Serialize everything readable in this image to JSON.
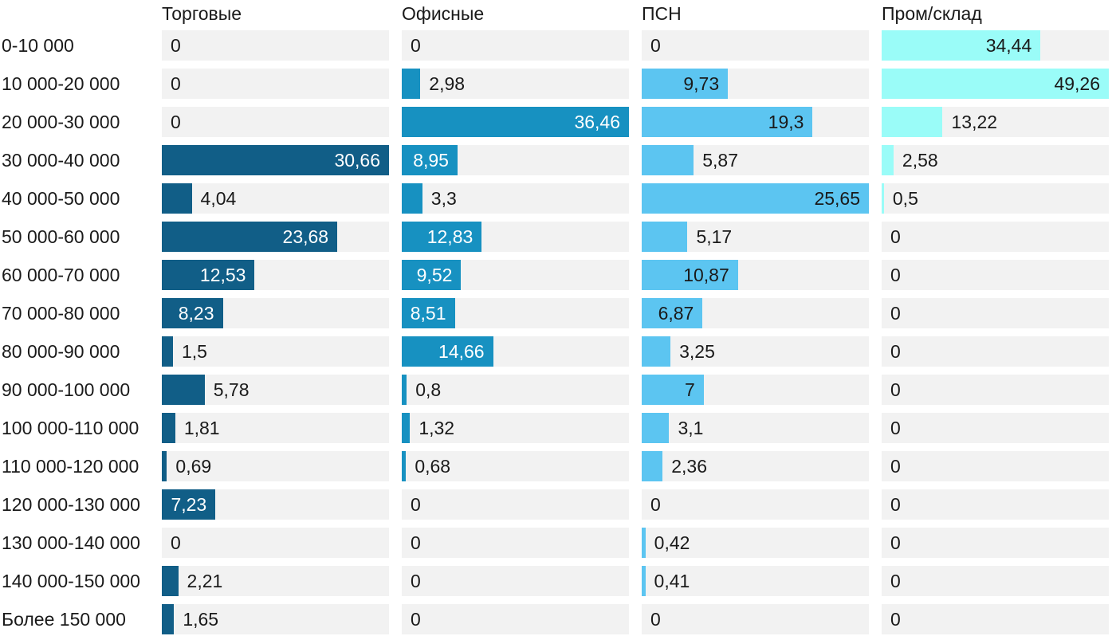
{
  "chart_data": {
    "type": "bar",
    "orientation": "horizontal",
    "layout": "small-multiples: 4 columns, each column scaled independently to its own max value",
    "grid": false,
    "legend_position": "column headers on top",
    "track_color": "#f2f2f2",
    "text_color": "#1a1a1a",
    "categories": [
      "0-10 000",
      "10 000-20 000",
      "20 000-30 000",
      "30 000-40 000",
      "40 000-50 000",
      "50 000-60 000",
      "60 000-70 000",
      "70 000-80 000",
      "80 000-90 000",
      "90 000-100 000",
      "100 000-110 000",
      "110 000-120 000",
      "120 000-130 000",
      "130 000-140 000",
      "140 000-150 000",
      "Более 150 000"
    ],
    "series": [
      {
        "name": "Торговые",
        "color": "#115e87",
        "inside_label_color": "#ffffff",
        "values": [
          0,
          0,
          0,
          30.66,
          4.04,
          23.68,
          12.53,
          8.23,
          1.5,
          5.78,
          1.81,
          0.69,
          7.23,
          0,
          2.21,
          1.65
        ],
        "labels": [
          "0",
          "0",
          "0",
          "30,66",
          "4,04",
          "23,68",
          "12,53",
          "8,23",
          "1,5",
          "5,78",
          "1,81",
          "0,69",
          "7,23",
          "0",
          "2,21",
          "1,65"
        ],
        "label_inside": [
          false,
          false,
          false,
          true,
          false,
          true,
          true,
          true,
          false,
          false,
          false,
          false,
          true,
          false,
          false,
          false
        ]
      },
      {
        "name": "Офисные",
        "color": "#1791c1",
        "inside_label_color": "#ffffff",
        "values": [
          0,
          2.98,
          36.46,
          8.95,
          3.3,
          12.83,
          9.52,
          8.51,
          14.66,
          0.8,
          1.32,
          0.68,
          0,
          0,
          0,
          0
        ],
        "labels": [
          "0",
          "2,98",
          "36,46",
          "8,95",
          "3,3",
          "12,83",
          "9,52",
          "8,51",
          "14,66",
          "0,8",
          "1,32",
          "0,68",
          "0",
          "0",
          "0",
          "0"
        ],
        "label_inside": [
          false,
          false,
          true,
          true,
          false,
          true,
          true,
          true,
          true,
          false,
          false,
          false,
          false,
          false,
          false,
          false
        ]
      },
      {
        "name": "ПСН",
        "color": "#5cc5f1",
        "inside_label_color": "#1a1a1a",
        "values": [
          0,
          9.73,
          19.3,
          5.87,
          25.65,
          5.17,
          10.87,
          6.87,
          3.25,
          7,
          3.1,
          2.36,
          0,
          0.42,
          0.41,
          0
        ],
        "labels": [
          "0",
          "9,73",
          "19,3",
          "5,87",
          "25,65",
          "5,17",
          "10,87",
          "6,87",
          "3,25",
          "7",
          "3,1",
          "2,36",
          "0",
          "0,42",
          "0,41",
          "0"
        ],
        "label_inside": [
          false,
          true,
          true,
          false,
          true,
          false,
          true,
          true,
          false,
          true,
          false,
          false,
          false,
          false,
          false,
          false
        ]
      },
      {
        "name": "Пром/склад",
        "color": "#9afcf8",
        "inside_label_color": "#1a1a1a",
        "values": [
          34.44,
          49.26,
          13.22,
          2.58,
          0.5,
          0,
          0,
          0,
          0,
          0,
          0,
          0,
          0,
          0,
          0,
          0
        ],
        "labels": [
          "34,44",
          "49,26",
          "13,22",
          "2,58",
          "0,5",
          "0",
          "0",
          "0",
          "0",
          "0",
          "0",
          "0",
          "0",
          "0",
          "0",
          "0"
        ],
        "label_inside": [
          true,
          true,
          false,
          false,
          false,
          false,
          false,
          false,
          false,
          false,
          false,
          false,
          false,
          false,
          false,
          false
        ]
      }
    ]
  }
}
